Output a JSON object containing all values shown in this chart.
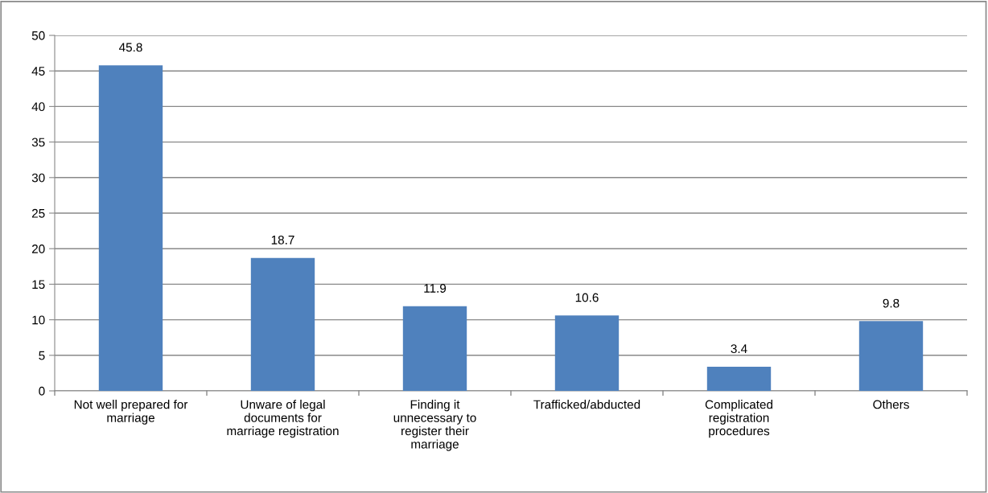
{
  "chart_data": {
    "type": "bar",
    "categories": [
      "Not well prepared for\nmarriage",
      "Unware of legal\ndocuments for\nmarriage registration",
      "Finding it\nunnecessary to\nregister their\nmarriage",
      "Trafficked/abducted",
      "Complicated\nregistration\nprocedures",
      "Others"
    ],
    "values": [
      45.8,
      18.7,
      11.9,
      10.6,
      3.4,
      9.8
    ],
    "color": "#4f81bd",
    "ylim": [
      0,
      50
    ],
    "yticks": [
      0,
      5,
      10,
      15,
      20,
      25,
      30,
      35,
      40,
      45,
      50
    ],
    "grid": "y",
    "data_labels": true
  }
}
